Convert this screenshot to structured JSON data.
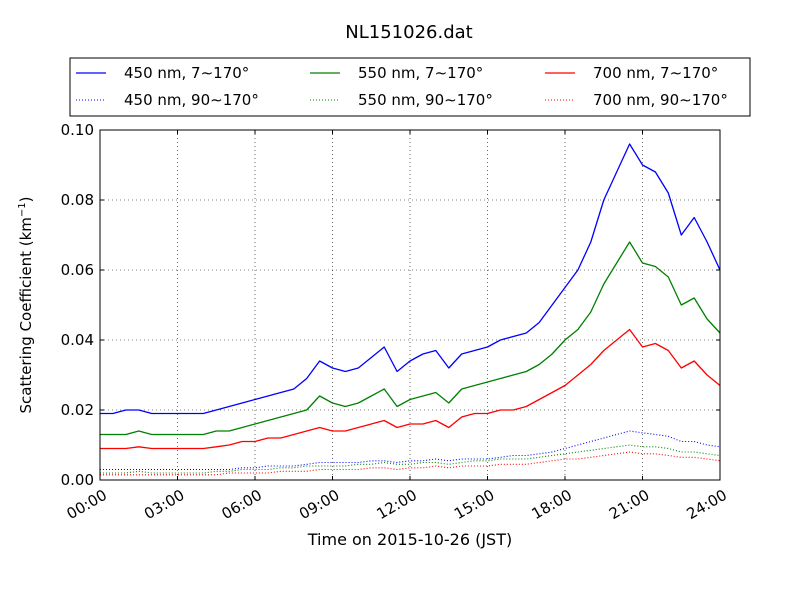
{
  "chart_data": {
    "type": "line",
    "title": "NL151026.dat",
    "xlabel": "Time on 2015-10-26 (JST)",
    "ylabel": "Scattering Coefficient (km",
    "ylabel_sup": "−1",
    "ylabel_close": ")",
    "xlim": [
      0,
      24
    ],
    "ylim": [
      0,
      0.1
    ],
    "grid": true,
    "legend_position": "top",
    "x_tick_values": [
      0,
      3,
      6,
      9,
      12,
      15,
      18,
      21,
      24
    ],
    "x_tick_labels": [
      "00:00",
      "03:00",
      "06:00",
      "09:00",
      "12:00",
      "15:00",
      "18:00",
      "21:00",
      "24:00"
    ],
    "y_tick_values": [
      0,
      0.02,
      0.04,
      0.06,
      0.08,
      0.1
    ],
    "y_tick_labels": [
      "0.00",
      "0.02",
      "0.04",
      "0.06",
      "0.08",
      "0.10"
    ],
    "x_hours": [
      0,
      0.5,
      1,
      1.5,
      2,
      2.5,
      3,
      3.5,
      4,
      4.5,
      5,
      5.5,
      6,
      6.5,
      7,
      7.5,
      8,
      8.5,
      9,
      9.5,
      10,
      10.5,
      11,
      11.5,
      12,
      12.5,
      13,
      13.5,
      14,
      14.5,
      15,
      15.5,
      16,
      16.5,
      17,
      17.5,
      18,
      18.5,
      19,
      19.5,
      20,
      20.5,
      21,
      21.5,
      22,
      22.5,
      23,
      23.5,
      24
    ],
    "series": [
      {
        "name": "450 nm, 7∼170°",
        "color": "#0000ff",
        "style": "solid",
        "values": [
          0.019,
          0.019,
          0.02,
          0.02,
          0.019,
          0.019,
          0.019,
          0.019,
          0.019,
          0.02,
          0.021,
          0.022,
          0.023,
          0.024,
          0.025,
          0.026,
          0.029,
          0.034,
          0.032,
          0.031,
          0.032,
          0.035,
          0.038,
          0.031,
          0.034,
          0.036,
          0.037,
          0.032,
          0.036,
          0.037,
          0.038,
          0.04,
          0.041,
          0.042,
          0.045,
          0.05,
          0.055,
          0.06,
          0.068,
          0.08,
          0.088,
          0.096,
          0.09,
          0.088,
          0.082,
          0.07,
          0.075,
          0.068,
          0.06
        ]
      },
      {
        "name": "450 nm, 90∼170°",
        "color": "#0000ff",
        "style": "dotted",
        "values": [
          0.003,
          0.003,
          0.003,
          0.003,
          0.003,
          0.003,
          0.003,
          0.003,
          0.003,
          0.003,
          0.003,
          0.0035,
          0.0035,
          0.004,
          0.004,
          0.004,
          0.0045,
          0.005,
          0.005,
          0.005,
          0.005,
          0.0055,
          0.0055,
          0.005,
          0.0055,
          0.0055,
          0.006,
          0.0055,
          0.006,
          0.006,
          0.006,
          0.0065,
          0.007,
          0.007,
          0.0075,
          0.008,
          0.009,
          0.01,
          0.011,
          0.012,
          0.013,
          0.014,
          0.0135,
          0.013,
          0.0125,
          0.011,
          0.011,
          0.01,
          0.0095
        ]
      },
      {
        "name": "550 nm, 7∼170°",
        "color": "#008000",
        "style": "solid",
        "values": [
          0.013,
          0.013,
          0.013,
          0.014,
          0.013,
          0.013,
          0.013,
          0.013,
          0.013,
          0.014,
          0.014,
          0.015,
          0.016,
          0.017,
          0.018,
          0.019,
          0.02,
          0.024,
          0.022,
          0.021,
          0.022,
          0.024,
          0.026,
          0.021,
          0.023,
          0.024,
          0.025,
          0.022,
          0.026,
          0.027,
          0.028,
          0.029,
          0.03,
          0.031,
          0.033,
          0.036,
          0.04,
          0.043,
          0.048,
          0.056,
          0.062,
          0.068,
          0.062,
          0.061,
          0.058,
          0.05,
          0.052,
          0.046,
          0.042
        ]
      },
      {
        "name": "550 nm, 90∼170°",
        "color": "#008000",
        "style": "dotted",
        "values": [
          0.002,
          0.002,
          0.002,
          0.0025,
          0.002,
          0.002,
          0.002,
          0.002,
          0.002,
          0.0025,
          0.0025,
          0.003,
          0.003,
          0.003,
          0.0035,
          0.0035,
          0.004,
          0.004,
          0.004,
          0.004,
          0.0045,
          0.0045,
          0.005,
          0.0045,
          0.0045,
          0.005,
          0.005,
          0.0045,
          0.005,
          0.0055,
          0.0055,
          0.006,
          0.006,
          0.006,
          0.0065,
          0.007,
          0.0075,
          0.008,
          0.0085,
          0.009,
          0.0095,
          0.01,
          0.0095,
          0.0095,
          0.009,
          0.008,
          0.008,
          0.0075,
          0.007
        ]
      },
      {
        "name": "700 nm, 7∼170°",
        "color": "#ff0000",
        "style": "solid",
        "values": [
          0.009,
          0.009,
          0.009,
          0.0095,
          0.009,
          0.009,
          0.009,
          0.009,
          0.009,
          0.0095,
          0.01,
          0.011,
          0.011,
          0.012,
          0.012,
          0.013,
          0.014,
          0.015,
          0.014,
          0.014,
          0.015,
          0.016,
          0.017,
          0.015,
          0.016,
          0.016,
          0.017,
          0.015,
          0.018,
          0.019,
          0.019,
          0.02,
          0.02,
          0.021,
          0.023,
          0.025,
          0.027,
          0.03,
          0.033,
          0.037,
          0.04,
          0.043,
          0.038,
          0.039,
          0.037,
          0.032,
          0.034,
          0.03,
          0.027
        ]
      },
      {
        "name": "700 nm, 90∼170°",
        "color": "#ff0000",
        "style": "dotted",
        "values": [
          0.0015,
          0.0015,
          0.0015,
          0.0015,
          0.0015,
          0.0015,
          0.0015,
          0.0015,
          0.0015,
          0.0015,
          0.002,
          0.002,
          0.002,
          0.002,
          0.0025,
          0.0025,
          0.0025,
          0.003,
          0.003,
          0.003,
          0.003,
          0.0035,
          0.0035,
          0.003,
          0.0035,
          0.0035,
          0.004,
          0.0035,
          0.004,
          0.004,
          0.004,
          0.0045,
          0.0045,
          0.0045,
          0.005,
          0.0055,
          0.006,
          0.006,
          0.0065,
          0.007,
          0.0075,
          0.008,
          0.0075,
          0.0075,
          0.007,
          0.0065,
          0.0065,
          0.006,
          0.0055
        ]
      }
    ]
  }
}
